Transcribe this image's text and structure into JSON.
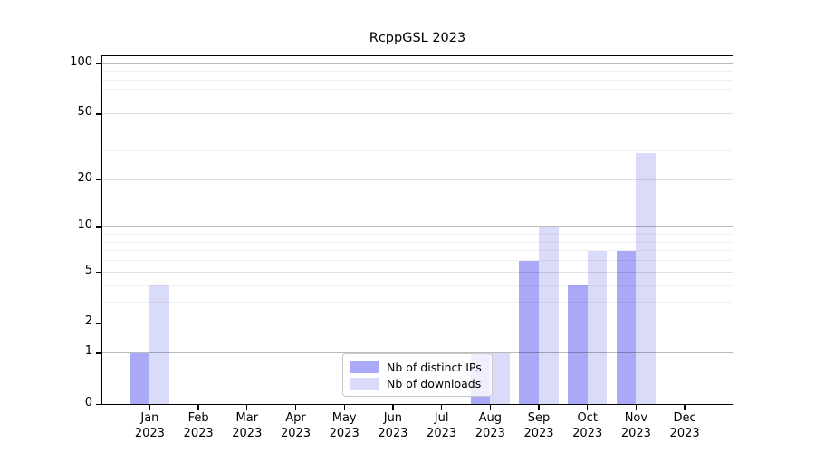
{
  "chart_data": {
    "type": "bar",
    "title": "RcppGSL 2023",
    "categories": [
      "Jan 2023",
      "Feb 2023",
      "Mar 2023",
      "Apr 2023",
      "May 2023",
      "Jun 2023",
      "Jul 2023",
      "Aug 2023",
      "Sep 2023",
      "Oct 2023",
      "Nov 2023",
      "Dec 2023"
    ],
    "series": [
      {
        "name": "Nb of distinct IPs",
        "color": "#a9a9f8",
        "values": [
          1,
          0,
          0,
          0,
          0,
          0,
          0,
          1,
          6,
          4,
          7,
          0
        ]
      },
      {
        "name": "Nb of downloads",
        "color": "#dadaf9",
        "values": [
          4,
          0,
          0,
          0,
          0,
          0,
          0,
          1,
          10,
          7,
          29,
          0
        ]
      }
    ],
    "y_axis": {
      "scale": "log1p",
      "max": 112,
      "tick_values": [
        0,
        1,
        2,
        5,
        10,
        20,
        50,
        100
      ],
      "emphasized_gridlines": [
        1,
        10,
        100
      ],
      "minor_gridlines": [
        3,
        4,
        6,
        7,
        8,
        9,
        30,
        40,
        60,
        70,
        80,
        90
      ]
    },
    "x_axis": {
      "tick_count": 12
    },
    "legend": {
      "position": "inside-bottom-center"
    },
    "background": "#ffffff",
    "grid": "on"
  }
}
